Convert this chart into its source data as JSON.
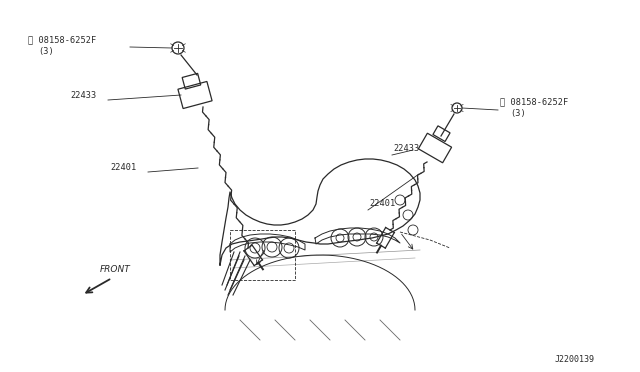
{
  "bg_color": "#ffffff",
  "line_color": "#2a2a2a",
  "diagram_id": "J2200139",
  "front_label": "FRONT"
}
